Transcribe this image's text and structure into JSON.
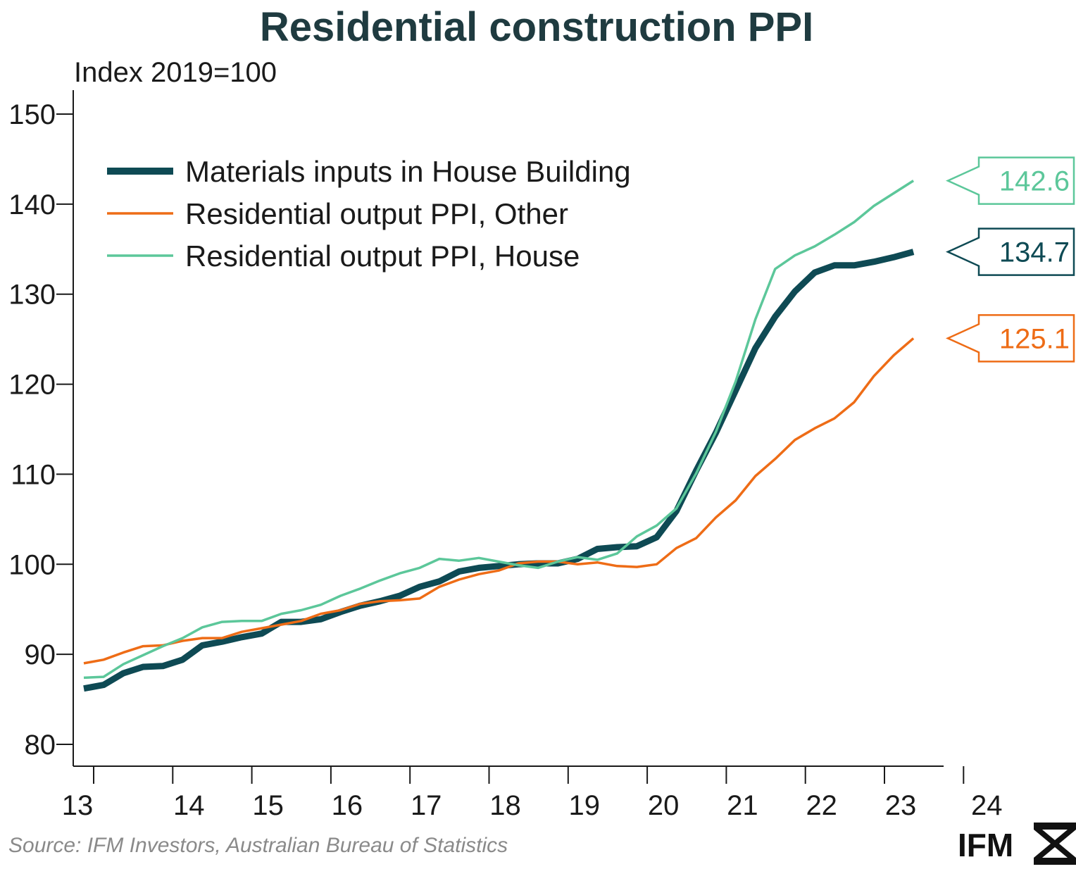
{
  "chart_data": {
    "type": "line",
    "title": "Residential construction PPI",
    "ylabel": "Index 2019=100",
    "xlabel": "",
    "ylim": [
      78,
      152
    ],
    "yticks": [
      80,
      90,
      100,
      110,
      120,
      130,
      140,
      150
    ],
    "xticks": [
      "13",
      "14",
      "15",
      "16",
      "17",
      "18",
      "19",
      "20",
      "21",
      "22",
      "23",
      "24"
    ],
    "x_start": "2013-Q3",
    "legend_position": "top-left",
    "grid": false,
    "series": [
      {
        "name": "Materials inputs in House Building",
        "color": "#0e4a54",
        "width": "thick",
        "values": [
          86.2,
          86.6,
          87.9,
          88.6,
          88.7,
          89.4,
          91.0,
          91.4,
          91.9,
          92.3,
          93.6,
          93.6,
          93.9,
          94.7,
          95.4,
          95.9,
          96.5,
          97.5,
          98.1,
          99.2,
          99.6,
          99.8,
          100.0,
          100.1,
          100.1,
          100.6,
          101.7,
          101.9,
          102.0,
          103.0,
          105.9,
          110.4,
          114.6,
          119.3,
          124.0,
          127.5,
          130.3,
          132.4,
          133.2,
          133.2,
          133.6,
          134.1,
          134.7
        ],
        "end_label": "134.7"
      },
      {
        "name": "Residential output PPI, Other",
        "color": "#ee6c16",
        "width": "thin",
        "values": [
          89.0,
          89.4,
          90.2,
          90.9,
          91.0,
          91.5,
          91.8,
          91.8,
          92.5,
          92.9,
          93.3,
          93.7,
          94.5,
          94.9,
          95.6,
          95.9,
          96.0,
          96.2,
          97.5,
          98.3,
          98.9,
          99.3,
          100.1,
          100.3,
          100.3,
          100.0,
          100.2,
          99.8,
          99.7,
          100.0,
          101.8,
          102.9,
          105.2,
          107.1,
          109.8,
          111.7,
          113.8,
          115.1,
          116.2,
          118.0,
          120.9,
          123.2,
          125.1
        ],
        "end_label": "125.1"
      },
      {
        "name": "Residential output PPI, House",
        "color": "#5cc79a",
        "width": "thin",
        "values": [
          87.4,
          87.5,
          88.9,
          89.9,
          90.9,
          91.8,
          93.0,
          93.6,
          93.7,
          93.7,
          94.5,
          94.9,
          95.5,
          96.5,
          97.3,
          98.2,
          99.0,
          99.6,
          100.6,
          100.4,
          100.7,
          100.3,
          99.9,
          99.6,
          100.3,
          100.8,
          100.5,
          101.2,
          103.1,
          104.3,
          106.2,
          110.1,
          114.7,
          120.3,
          127.2,
          132.8,
          134.3,
          135.3,
          136.6,
          138.0,
          139.8,
          141.2,
          142.6
        ],
        "end_label": "142.6"
      }
    ]
  },
  "unit_label": "Index 2019=100",
  "source": "Source: IFM Investors, Australian Bureau of Statistics",
  "logo": {
    "text": "IFM",
    "icon": "ifm-hourglass-icon"
  },
  "colors": {
    "axis": "#1a1a1a",
    "title": "#1f3b40"
  }
}
